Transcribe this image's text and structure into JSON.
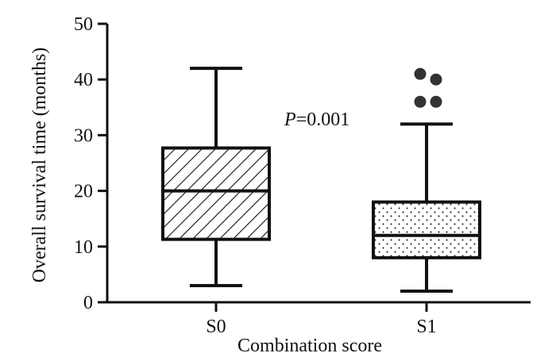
{
  "chart_data": {
    "type": "box",
    "xlabel": "Combination score",
    "ylabel": "Overall survival time (months)",
    "ylim": [
      0,
      50
    ],
    "yticks": [
      0,
      10,
      20,
      30,
      40,
      50
    ],
    "categories": [
      "S0",
      "S1"
    ],
    "boxes": [
      {
        "category": "S0",
        "min": 3,
        "q1": 11.3,
        "median": 20,
        "q3": 27.7,
        "max": 42,
        "outliers": [],
        "fill_pattern": "diagonal-hatch"
      },
      {
        "category": "S1",
        "min": 2,
        "q1": 8,
        "median": 12,
        "q3": 18,
        "max": 32,
        "outliers": [
          41,
          40,
          36,
          36
        ],
        "fill_pattern": "dots"
      }
    ],
    "annotation": {
      "italic": "P",
      "text": "=0.001"
    },
    "grid": false,
    "legend": "none",
    "colors": {
      "stroke": "#111111",
      "outlier": "#333333",
      "background": "#ffffff"
    }
  }
}
